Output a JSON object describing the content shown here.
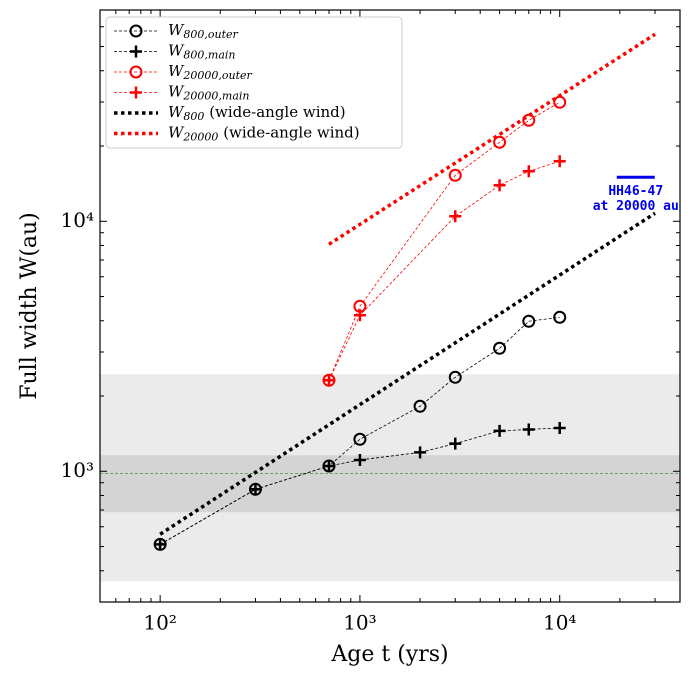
{
  "chart_data": {
    "type": "line",
    "xlabel": "Age t (yrs)",
    "ylabel": "Full width W(au)",
    "xscale": "log",
    "yscale": "log",
    "xlim": [
      50,
      40000
    ],
    "ylim": [
      300,
      70000
    ],
    "xticks": [
      {
        "value": 100,
        "label": "10²"
      },
      {
        "value": 1000,
        "label": "10³"
      },
      {
        "value": 10000,
        "label": "10⁴"
      }
    ],
    "yticks": [
      {
        "value": 1000,
        "label": "10³"
      },
      {
        "value": 10000,
        "label": "10⁴"
      }
    ],
    "legend": "upper left",
    "bands": [
      {
        "ylim": [
          363,
          2443
        ],
        "color": "#ebebeb"
      },
      {
        "ylim": [
          686,
          1159
        ],
        "color": "#d4d4d4"
      }
    ],
    "hline": {
      "y": 980,
      "color": "#3a9a3a"
    },
    "series": [
      {
        "name": "W800,outer",
        "color": "#000000",
        "marker": "o",
        "linestyle": "dashed",
        "x": [
          100,
          300,
          700,
          1000,
          2000,
          3000,
          5000,
          7000,
          10000
        ],
        "values": [
          510,
          847,
          1050,
          1343,
          1820,
          2377,
          3105,
          3981,
          4130
        ]
      },
      {
        "name": "W800,main",
        "color": "#000000",
        "marker": "+",
        "linestyle": "dashed",
        "x": [
          100,
          300,
          700,
          1000,
          2000,
          3000,
          5000,
          7000,
          10000
        ],
        "values": [
          510,
          847,
          1050,
          1110,
          1190,
          1290,
          1450,
          1470,
          1490
        ]
      },
      {
        "name": "W20000,outer",
        "color": "#ff0000",
        "marker": "o",
        "linestyle": "dashed",
        "x": [
          700,
          1000,
          3000,
          5000,
          7000,
          10000
        ],
        "values": [
          2312,
          4571,
          15276,
          20700,
          25350,
          29920
        ]
      },
      {
        "name": "W20000,main",
        "color": "#ff0000",
        "marker": "+",
        "linestyle": "dashed",
        "x": [
          700,
          1000,
          3000,
          5000,
          7000,
          10000
        ],
        "values": [
          2312,
          4207,
          10471,
          13930,
          15850,
          17380
        ]
      },
      {
        "name": "W800 (wide-angle wind)",
        "color": "#000000",
        "marker": "none",
        "linestyle": "dotted",
        "x": [
          100,
          30000
        ],
        "values": [
          560,
          10770
        ]
      },
      {
        "name": "W20000 (wide-angle wind)",
        "color": "#ff0000",
        "marker": "none",
        "linestyle": "dotted",
        "x": [
          700,
          30000
        ],
        "values": [
          8090,
          55980
        ]
      }
    ],
    "annotation": {
      "lines": [
        "HH46-47",
        "at 20000 au"
      ],
      "x": [
        19300,
        29900
      ],
      "y": 15000,
      "color": "#0000ee"
    }
  }
}
